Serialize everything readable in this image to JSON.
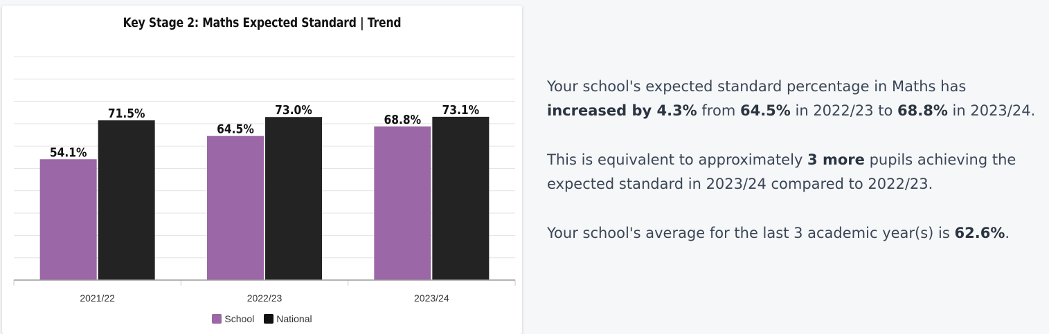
{
  "chart_data": {
    "type": "bar",
    "title": "Key Stage 2: Maths Expected Standard | Trend",
    "categories": [
      "2021/22",
      "2022/23",
      "2023/24"
    ],
    "series": [
      {
        "name": "School",
        "values": [
          54.1,
          64.5,
          68.8
        ],
        "labels": [
          "54.1%",
          "64.5%",
          "68.8%"
        ],
        "color": "#9b67a6"
      },
      {
        "name": "National",
        "values": [
          71.5,
          73.0,
          73.1
        ],
        "labels": [
          "71.5%",
          "73.0%",
          "73.1%"
        ],
        "color": "#232323"
      }
    ],
    "ylim": [
      0,
      100
    ],
    "grid": true,
    "legend": "bottom-center"
  },
  "summary": {
    "p1": {
      "a": "Your school's expected standard percentage in Maths has ",
      "b": "increased by 4.3%",
      "c": " from ",
      "d": "64.5%",
      "e": " in 2022/23 to ",
      "f": "68.8%",
      "g": " in 2023/24."
    },
    "p2": {
      "a": "This is equivalent to approximately ",
      "b": "3 more",
      "c": " pupils achieving the expected standard in 2023/24 compared to 2022/23."
    },
    "p3": {
      "a": "Your school's average for the last 3 academic year(s) is ",
      "b": "62.6%",
      "c": "."
    }
  }
}
